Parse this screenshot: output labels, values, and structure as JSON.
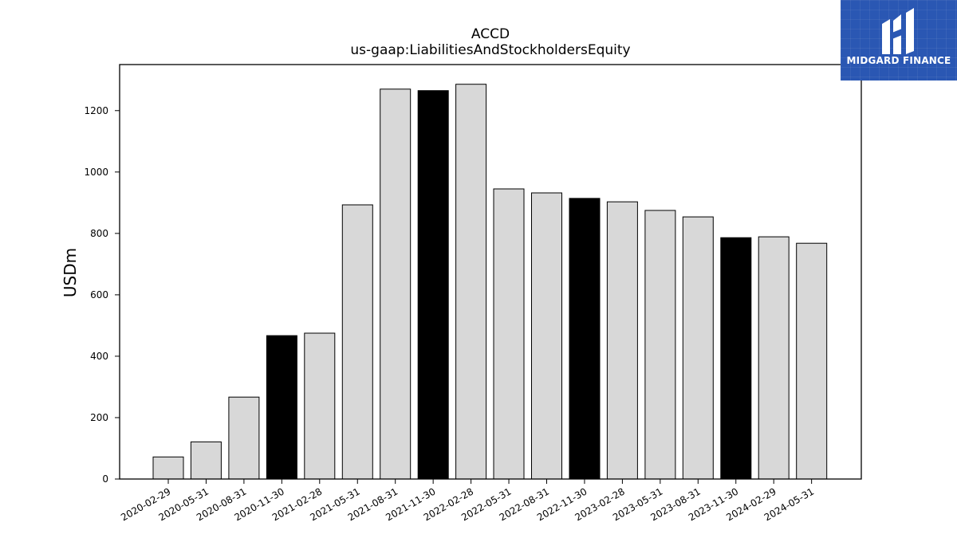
{
  "colors": {
    "bar_default": "#d8d8d8",
    "bar_highlight": "#000000",
    "bar_stroke": "#000000",
    "logo_bg": "#2a57b3",
    "logo_fg": "#ffffff"
  },
  "logo": {
    "text": "MIDGARD FINANCE"
  },
  "chart_data": {
    "type": "bar",
    "title": "ACCD",
    "subtitle": "us-gaap:LiabilitiesAndStockholdersEquity",
    "xlabel": "",
    "ylabel": "USDm",
    "ylim": [
      0,
      1350
    ],
    "yticks": [
      0,
      200,
      400,
      600,
      800,
      1000,
      1200
    ],
    "grid": false,
    "categories": [
      "2020-02-29",
      "2020-05-31",
      "2020-08-31",
      "2020-11-30",
      "2021-02-28",
      "2021-05-31",
      "2021-08-31",
      "2021-11-30",
      "2022-02-28",
      "2022-05-31",
      "2022-08-31",
      "2022-11-30",
      "2023-02-28",
      "2023-05-31",
      "2023-08-31",
      "2023-11-30",
      "2024-02-29",
      "2024-05-31"
    ],
    "values": [
      72,
      121,
      267,
      467,
      475,
      893,
      1270,
      1265,
      1286,
      945,
      932,
      914,
      903,
      875,
      854,
      786,
      789,
      768
    ],
    "highlighted": [
      false,
      false,
      false,
      true,
      false,
      false,
      false,
      true,
      false,
      false,
      false,
      true,
      false,
      false,
      false,
      true,
      false,
      false
    ]
  }
}
